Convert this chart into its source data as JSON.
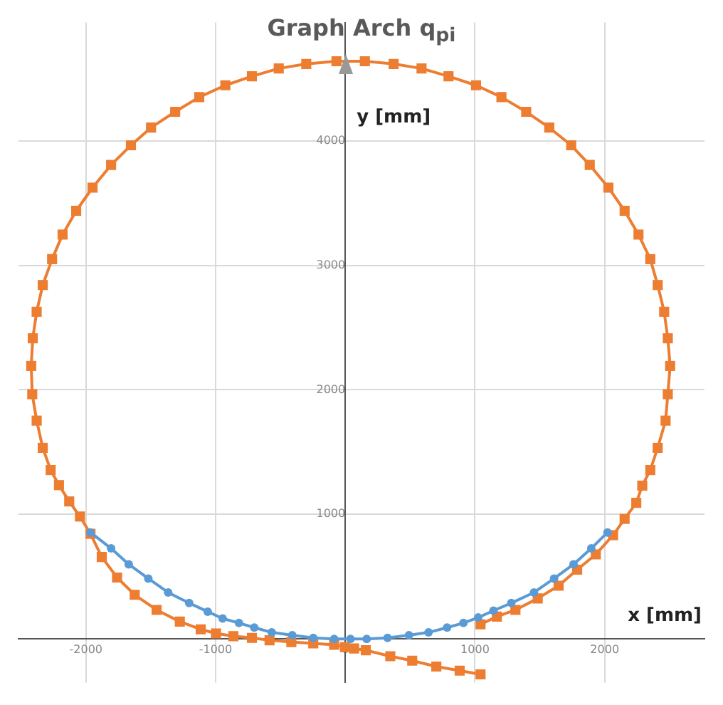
{
  "chart_data": {
    "type": "line",
    "title": "Graph Arch q$_{pi}$",
    "xlabel": "x [mm]",
    "ylabel": "y [mm]",
    "xlim": [
      -2520,
      2770
    ],
    "ylim": [
      -350,
      4950
    ],
    "xticks": [
      -2000,
      -1000,
      0,
      1000,
      2000
    ],
    "yticks": [
      {
        "value": 0,
        "label": null
      },
      1000,
      2000,
      3000,
      4000
    ],
    "grid": true,
    "legend": false,
    "series": [
      {
        "color": "#5b9bd5",
        "marker": "circle",
        "x": [
          -1965,
          -1806,
          -1670,
          -1519,
          -1366,
          -1204,
          -1061,
          -946,
          -820,
          -702,
          -567,
          -409,
          -247,
          -86,
          40,
          165,
          326,
          491,
          642,
          785,
          911,
          1025,
          1143,
          1280,
          1455,
          1610,
          1760,
          1897,
          2022
        ],
        "values": [
          855,
          727,
          599,
          485,
          373,
          288,
          219,
          164,
          128,
          91,
          52,
          30,
          8,
          0,
          0,
          0,
          8,
          30,
          52,
          91,
          128,
          172,
          227,
          288,
          373,
          485,
          599,
          727,
          855
        ]
      },
      {
        "color": "#ed7d31",
        "marker": "square",
        "x": [
          1043,
          1169,
          1312,
          1484,
          1645,
          1788,
          1932,
          2065,
          2154,
          2244,
          2290,
          2352,
          2409,
          2470,
          2487,
          2505,
          2487,
          2459,
          2409,
          2352,
          2261,
          2154,
          2029,
          1885,
          1742,
          1573,
          1395,
          1204,
          1008,
          796,
          588,
          373,
          151,
          -68,
          -301,
          -513,
          -720,
          -925,
          -1126,
          -1312,
          -1498,
          -1653,
          -1806,
          -1949,
          -2075,
          -2180,
          -2261,
          -2333,
          -2380,
          -2410,
          -2422,
          -2414,
          -2380,
          -2333,
          -2272,
          -2208,
          -2129,
          -2046,
          -1965,
          -1878,
          -1760,
          -1624,
          -1455,
          -1276,
          -1115,
          -997,
          -863,
          -720,
          -584,
          -416,
          -247,
          -86,
          -3,
          68,
          158,
          347,
          516,
          702,
          882,
          1043
        ],
        "values": [
          117,
          179,
          233,
          325,
          427,
          556,
          679,
          833,
          964,
          1093,
          1231,
          1356,
          1534,
          1753,
          1965,
          2192,
          2414,
          2627,
          2842,
          3050,
          3247,
          3438,
          3624,
          3806,
          3964,
          4106,
          4233,
          4351,
          4446,
          4518,
          4581,
          4617,
          4639,
          4639,
          4617,
          4581,
          4518,
          4446,
          4351,
          4233,
          4106,
          3964,
          3806,
          3624,
          3438,
          3247,
          3050,
          2842,
          2627,
          2414,
          2192,
          1965,
          1753,
          1534,
          1356,
          1235,
          1104,
          983,
          844,
          658,
          493,
          354,
          233,
          139,
          77,
          44,
          22,
          8,
          -11,
          -25,
          -36,
          -47,
          -66,
          -77,
          -91,
          -139,
          -175,
          -222,
          -255,
          -285
        ]
      }
    ]
  }
}
